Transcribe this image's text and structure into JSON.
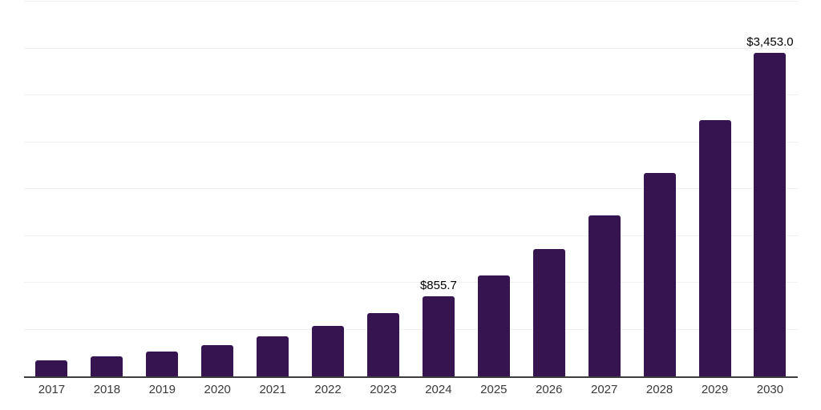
{
  "chart": {
    "background_color": "#ffffff",
    "bar_color": "#361450",
    "gridline_color": "#f0f0f0",
    "axis_line_color": "#3d3d3d",
    "data_label_color": "#000000",
    "tick_label_color": "#3a3a3a"
  },
  "chart_data": {
    "type": "bar",
    "title": "",
    "xlabel": "",
    "ylabel": "",
    "categories": [
      "2017",
      "2018",
      "2019",
      "2020",
      "2021",
      "2022",
      "2023",
      "2024",
      "2025",
      "2026",
      "2027",
      "2028",
      "2029",
      "2030"
    ],
    "values": [
      168.1,
      212.1,
      267.6,
      337.6,
      426.0,
      537.5,
      678.2,
      855.7,
      1079.7,
      1362.2,
      1718.8,
      2168.6,
      2736.2,
      3453.0
    ],
    "data_labels": [
      {
        "category": "2024",
        "text": "$855.7"
      },
      {
        "category": "2030",
        "text": "$3,453.0"
      }
    ],
    "ylim": [
      0,
      4000
    ],
    "grid_step": 500,
    "grid": true,
    "legend": false,
    "y_tick_labels_visible": false
  }
}
